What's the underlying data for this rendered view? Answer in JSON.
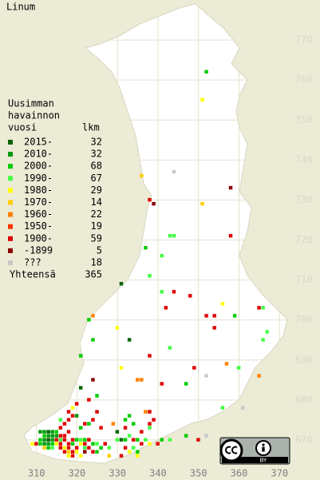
{
  "map": {
    "title": "Linum",
    "legend": {
      "header": [
        "Uusimman",
        "havainnon",
        "vuosi"
      ],
      "count_header": "lkm",
      "entries": [
        {
          "label": "2015-",
          "count": 32,
          "color": "#006400"
        },
        {
          "label": "2010-",
          "count": 32,
          "color": "#00990a"
        },
        {
          "label": "2000-",
          "count": 68,
          "color": "#00cc00"
        },
        {
          "label": "1990-",
          "count": 67,
          "color": "#44ff44"
        },
        {
          "label": "1980-",
          "count": 29,
          "color": "#ffff00"
        },
        {
          "label": "1970-",
          "count": 14,
          "color": "#ffcc00"
        },
        {
          "label": "1960-",
          "count": 22,
          "color": "#ff8000"
        },
        {
          "label": "1950-",
          "count": 19,
          "color": "#ff3300"
        },
        {
          "label": "1900-",
          "count": 59,
          "color": "#dd0000"
        },
        {
          "label": "-1899",
          "count": 5,
          "color": "#880000"
        },
        {
          "label": "???",
          "count": 18,
          "color": "#c8c8c8"
        }
      ],
      "total_label": "Yhteensä",
      "total": 365
    },
    "xlim": [
      301,
      380
    ],
    "ylim": [
      660,
      780
    ],
    "xticks": [
      310,
      320,
      330,
      340,
      350,
      360,
      370
    ],
    "yticks": [
      670,
      680,
      690,
      700,
      710,
      720,
      730,
      740,
      750,
      760,
      770
    ],
    "license": "BY",
    "cells": [
      [
        352,
        762,
        2
      ],
      [
        351,
        755,
        4
      ],
      [
        344,
        737,
        10
      ],
      [
        336,
        736,
        5
      ],
      [
        358,
        733,
        9
      ],
      [
        338,
        730,
        8
      ],
      [
        339,
        729,
        9
      ],
      [
        351,
        729,
        5
      ],
      [
        343,
        721,
        3
      ],
      [
        344,
        721,
        3
      ],
      [
        358,
        721,
        8
      ],
      [
        337,
        718,
        2
      ],
      [
        341,
        716,
        3
      ],
      [
        338,
        711,
        3
      ],
      [
        331,
        709,
        0
      ],
      [
        341,
        707,
        3
      ],
      [
        344,
        707,
        8
      ],
      [
        348,
        706,
        8
      ],
      [
        342,
        703,
        8
      ],
      [
        356,
        704,
        4
      ],
      [
        365,
        703,
        8
      ],
      [
        366,
        703,
        3
      ],
      [
        324,
        701,
        6
      ],
      [
        352,
        701,
        8
      ],
      [
        354,
        701,
        8
      ],
      [
        359,
        701,
        2
      ],
      [
        323,
        700,
        2
      ],
      [
        330,
        698,
        4
      ],
      [
        354,
        698,
        8
      ],
      [
        367,
        697,
        3
      ],
      [
        333,
        695,
        0
      ],
      [
        324,
        695,
        2
      ],
      [
        343,
        693,
        3
      ],
      [
        366,
        695,
        3
      ],
      [
        338,
        691,
        8
      ],
      [
        321,
        691,
        2
      ],
      [
        357,
        689,
        6
      ],
      [
        360,
        688,
        3
      ],
      [
        331,
        688,
        4
      ],
      [
        349,
        688,
        8
      ],
      [
        365,
        686,
        6
      ],
      [
        335,
        685,
        6
      ],
      [
        336,
        685,
        6
      ],
      [
        341,
        684,
        8
      ],
      [
        352,
        686,
        10
      ],
      [
        347,
        684,
        2
      ],
      [
        321,
        683,
        0
      ],
      [
        324,
        685,
        9
      ],
      [
        356,
        678,
        3
      ],
      [
        361,
        678,
        10
      ],
      [
        319,
        678,
        4
      ],
      [
        325,
        677,
        8
      ],
      [
        338,
        677,
        8
      ],
      [
        332,
        675,
        2
      ],
      [
        338,
        674,
        8
      ],
      [
        347,
        671,
        2
      ],
      [
        350,
        670,
        8
      ],
      [
        352,
        671,
        10
      ],
      [
        343,
        670,
        3
      ],
      [
        311,
        672,
        1
      ],
      [
        312,
        672,
        1
      ],
      [
        313,
        672,
        0
      ],
      [
        314,
        672,
        1
      ],
      [
        315,
        672,
        2
      ],
      [
        312,
        671,
        2
      ],
      [
        313,
        671,
        1
      ],
      [
        314,
        671,
        1
      ],
      [
        315,
        671,
        1
      ],
      [
        316,
        671,
        8
      ],
      [
        317,
        671,
        8
      ],
      [
        318,
        672,
        8
      ],
      [
        311,
        670,
        2
      ],
      [
        312,
        670,
        1
      ],
      [
        313,
        670,
        0
      ],
      [
        314,
        670,
        1
      ],
      [
        315,
        670,
        8
      ],
      [
        316,
        670,
        3
      ],
      [
        317,
        670,
        8
      ],
      [
        319,
        670,
        8
      ],
      [
        320,
        670,
        2
      ],
      [
        321,
        670,
        3
      ],
      [
        322,
        670,
        2
      ],
      [
        323,
        670,
        8
      ],
      [
        309,
        669,
        4
      ],
      [
        310,
        669,
        8
      ],
      [
        311,
        669,
        2
      ],
      [
        312,
        669,
        1
      ],
      [
        313,
        669,
        1
      ],
      [
        314,
        669,
        2
      ],
      [
        315,
        669,
        4
      ],
      [
        316,
        669,
        8
      ],
      [
        318,
        669,
        8
      ],
      [
        319,
        669,
        2
      ],
      [
        321,
        669,
        4
      ],
      [
        322,
        669,
        8
      ],
      [
        324,
        669,
        2
      ],
      [
        325,
        669,
        3
      ],
      [
        327,
        669,
        8
      ],
      [
        312,
        668,
        5
      ],
      [
        313,
        668,
        2
      ],
      [
        314,
        668,
        3
      ],
      [
        316,
        668,
        8
      ],
      [
        317,
        668,
        4
      ],
      [
        318,
        668,
        8
      ],
      [
        320,
        668,
        8
      ],
      [
        322,
        668,
        3
      ],
      [
        323,
        668,
        8
      ],
      [
        326,
        668,
        2
      ],
      [
        328,
        668,
        3
      ],
      [
        317,
        667,
        8
      ],
      [
        318,
        667,
        5
      ],
      [
        319,
        667,
        8
      ],
      [
        320,
        667,
        4
      ],
      [
        322,
        667,
        9
      ],
      [
        324,
        667,
        8
      ],
      [
        325,
        667,
        2
      ],
      [
        318,
        666,
        4
      ],
      [
        319,
        666,
        8
      ],
      [
        321,
        666,
        4
      ],
      [
        316,
        673,
        8
      ],
      [
        317,
        674,
        8
      ],
      [
        318,
        675,
        8
      ],
      [
        319,
        676,
        8
      ],
      [
        320,
        676,
        1
      ],
      [
        318,
        677,
        8
      ],
      [
        316,
        675,
        3
      ],
      [
        321,
        673,
        2
      ],
      [
        322,
        674,
        8
      ],
      [
        323,
        674,
        2
      ],
      [
        324,
        675,
        8
      ],
      [
        326,
        673,
        8
      ],
      [
        330,
        670,
        3
      ],
      [
        331,
        670,
        0
      ],
      [
        332,
        670,
        2
      ],
      [
        333,
        671,
        3
      ],
      [
        334,
        670,
        8
      ],
      [
        335,
        670,
        2
      ],
      [
        336,
        669,
        8
      ],
      [
        337,
        670,
        3
      ],
      [
        338,
        669,
        4
      ],
      [
        340,
        669,
        8
      ],
      [
        341,
        670,
        2
      ],
      [
        332,
        668,
        8
      ],
      [
        334,
        668,
        3
      ],
      [
        333,
        667,
        4
      ],
      [
        335,
        667,
        2
      ],
      [
        330,
        672,
        0
      ],
      [
        332,
        673,
        8
      ],
      [
        334,
        674,
        2
      ],
      [
        336,
        672,
        8
      ],
      [
        338,
        673,
        3
      ],
      [
        339,
        675,
        8
      ],
      [
        328,
        666,
        5
      ],
      [
        331,
        666,
        8
      ],
      [
        335,
        666,
        4
      ],
      [
        329,
        674,
        6
      ],
      [
        333,
        676,
        2
      ],
      [
        337,
        677,
        6
      ],
      [
        320,
        679,
        8
      ],
      [
        323,
        680,
        8
      ],
      [
        325,
        681,
        2
      ]
    ]
  }
}
